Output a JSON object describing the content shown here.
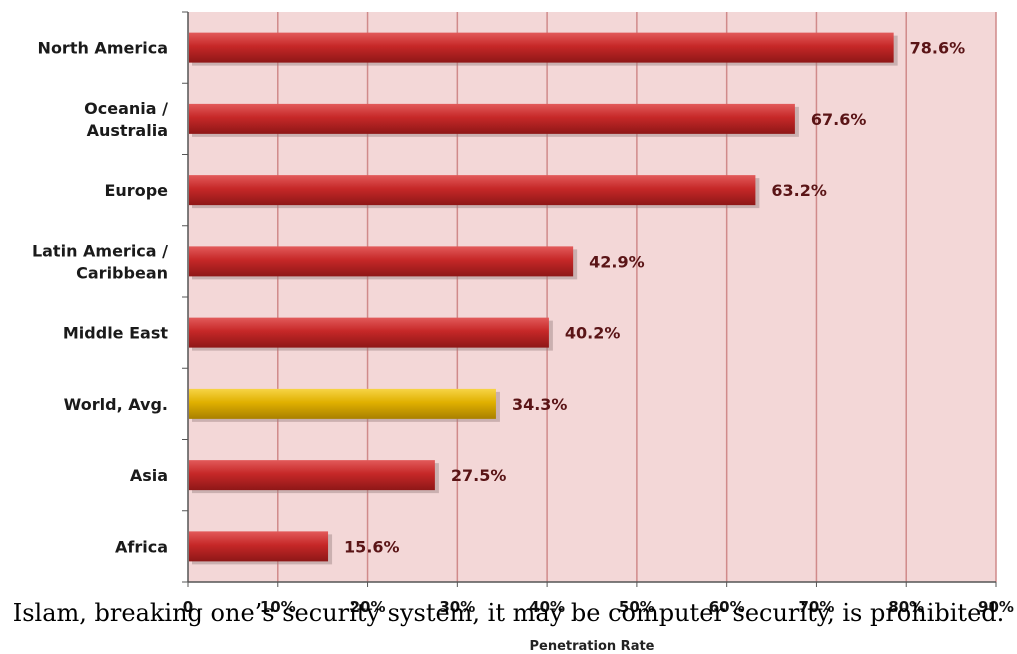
{
  "chart_data": {
    "type": "bar",
    "orientation": "horizontal",
    "categories": [
      [
        "North America"
      ],
      [
        "Oceania  /",
        "Australia"
      ],
      [
        "Europe"
      ],
      [
        "Latin America /",
        "Caribbean"
      ],
      [
        "Middle East"
      ],
      [
        "World, Avg."
      ],
      [
        "Asia"
      ],
      [
        "Africa"
      ]
    ],
    "values": [
      78.6,
      67.6,
      63.2,
      42.9,
      40.2,
      34.3,
      27.5,
      15.6
    ],
    "value_labels": [
      "78.6%",
      "67.6%",
      "63.2%",
      "42.9%",
      "40.2%",
      "34.3%",
      "27.5%",
      "15.6%"
    ],
    "highlight_index": 5,
    "xlabel": "Penetration Rate",
    "xlim": [
      0,
      90
    ],
    "x_ticks": [
      "0",
      "10%",
      "20%",
      "30%",
      "40%",
      "50%",
      "60%",
      "70%",
      "80%",
      "90%"
    ],
    "grid": true,
    "colors": {
      "bar": "#c62828",
      "bar_highlight": "#e0b000",
      "plot_background": "#f3d7d7",
      "grid": "#d08a8a",
      "value_label": "#5a1416"
    }
  },
  "caption": "Islam, breaking one’s security system, it may be computer security, is prohibited."
}
